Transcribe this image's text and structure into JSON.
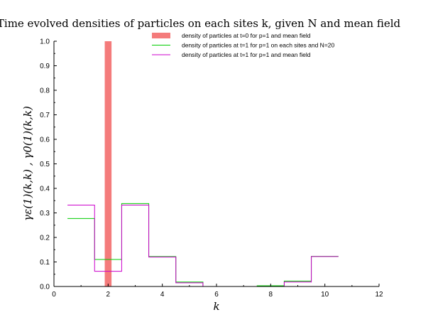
{
  "chart_data": {
    "type": "bar",
    "title": "Time evolved densities of particles on each sites k, given N and mean field",
    "xlabel": "k",
    "ylabel": "γε(1)(k,k) , γ0(1)(k,k)",
    "xlim": [
      0,
      12
    ],
    "ylim": [
      0,
      1.0
    ],
    "xticks": [
      0,
      2,
      4,
      6,
      8,
      10,
      12
    ],
    "yticks": [
      0.0,
      0.1,
      0.2,
      0.3,
      0.4,
      0.5,
      0.6,
      0.7,
      0.8,
      0.9,
      1.0
    ],
    "xtick_labels": [
      "0",
      "2",
      "4",
      "6",
      "8",
      "10",
      "12"
    ],
    "ytick_labels": [
      "0.0",
      "0.1",
      "0.2",
      "0.3",
      "0.4",
      "0.5",
      "0.6",
      "0.7",
      "0.8",
      "0.9",
      "1.0"
    ],
    "grid": false,
    "legend_position": "top",
    "series": [
      {
        "name": "density of particles at t=0 for p=1 and mean field",
        "kind": "bar",
        "color": "#f47b7b",
        "x": [
          2
        ],
        "values": [
          1.0
        ]
      },
      {
        "name": "density of particles at t=1 for p=1 on each sites and N=20",
        "kind": "step",
        "color": "#00cc00",
        "x": [
          1,
          2,
          3,
          4,
          5,
          6,
          7,
          8,
          9,
          10
        ],
        "values": [
          0.277,
          0.11,
          0.338,
          0.122,
          0.018,
          0.0,
          0.0,
          0.003,
          0.022,
          0.123
        ]
      },
      {
        "name": "density of particles at t=1 for p=1 and mean field",
        "kind": "step",
        "color": "#cc00cc",
        "x": [
          1,
          2,
          3,
          4,
          5,
          6,
          7,
          8,
          9,
          10
        ],
        "values": [
          0.332,
          0.062,
          0.332,
          0.12,
          0.015,
          0.0,
          0.0,
          0.0,
          0.018,
          0.122
        ]
      }
    ]
  }
}
